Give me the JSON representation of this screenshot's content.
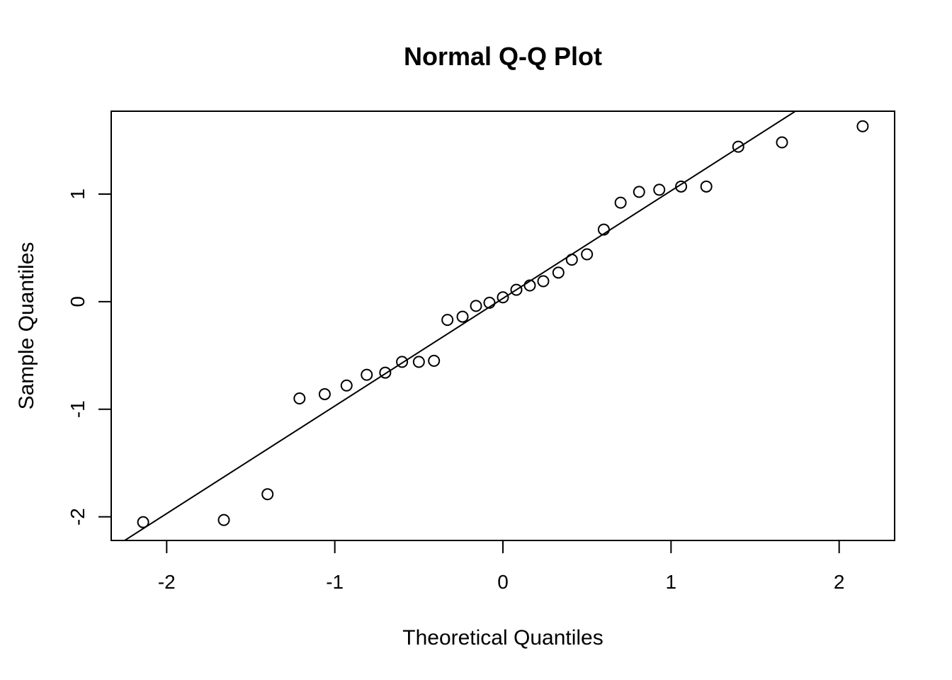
{
  "chart_data": {
    "type": "scatter",
    "title": "Normal Q-Q Plot",
    "xlabel": "Theoretical Quantiles",
    "ylabel": "Sample Quantiles",
    "xlim": [
      -2.33,
      2.33
    ],
    "ylim": [
      -2.22,
      1.77
    ],
    "xticks": [
      -2,
      -1,
      0,
      1,
      2
    ],
    "xtick_labels": [
      "-2",
      "-1",
      "0",
      "1",
      "2"
    ],
    "yticks": [
      -2,
      -1,
      0,
      1
    ],
    "ytick_labels": [
      "-2",
      "-1",
      "0",
      "1"
    ],
    "grid": false,
    "reference_line": {
      "intercept": 0.03,
      "slope": 1.0
    },
    "points": [
      {
        "x": -2.14,
        "y": -2.05
      },
      {
        "x": -1.66,
        "y": -2.03
      },
      {
        "x": -1.4,
        "y": -1.79
      },
      {
        "x": -1.21,
        "y": -0.9
      },
      {
        "x": -1.06,
        "y": -0.86
      },
      {
        "x": -0.93,
        "y": -0.78
      },
      {
        "x": -0.81,
        "y": -0.68
      },
      {
        "x": -0.7,
        "y": -0.66
      },
      {
        "x": -0.6,
        "y": -0.56
      },
      {
        "x": -0.5,
        "y": -0.56
      },
      {
        "x": -0.41,
        "y": -0.55
      },
      {
        "x": -0.33,
        "y": -0.17
      },
      {
        "x": -0.24,
        "y": -0.14
      },
      {
        "x": -0.16,
        "y": -0.04
      },
      {
        "x": -0.08,
        "y": -0.01
      },
      {
        "x": 0.0,
        "y": 0.04
      },
      {
        "x": 0.08,
        "y": 0.11
      },
      {
        "x": 0.16,
        "y": 0.15
      },
      {
        "x": 0.24,
        "y": 0.19
      },
      {
        "x": 0.33,
        "y": 0.27
      },
      {
        "x": 0.41,
        "y": 0.39
      },
      {
        "x": 0.5,
        "y": 0.44
      },
      {
        "x": 0.6,
        "y": 0.67
      },
      {
        "x": 0.7,
        "y": 0.92
      },
      {
        "x": 0.81,
        "y": 1.02
      },
      {
        "x": 0.93,
        "y": 1.04
      },
      {
        "x": 1.06,
        "y": 1.07
      },
      {
        "x": 1.21,
        "y": 1.07
      },
      {
        "x": 1.4,
        "y": 1.44
      },
      {
        "x": 1.66,
        "y": 1.48
      },
      {
        "x": 2.14,
        "y": 1.63
      }
    ]
  }
}
